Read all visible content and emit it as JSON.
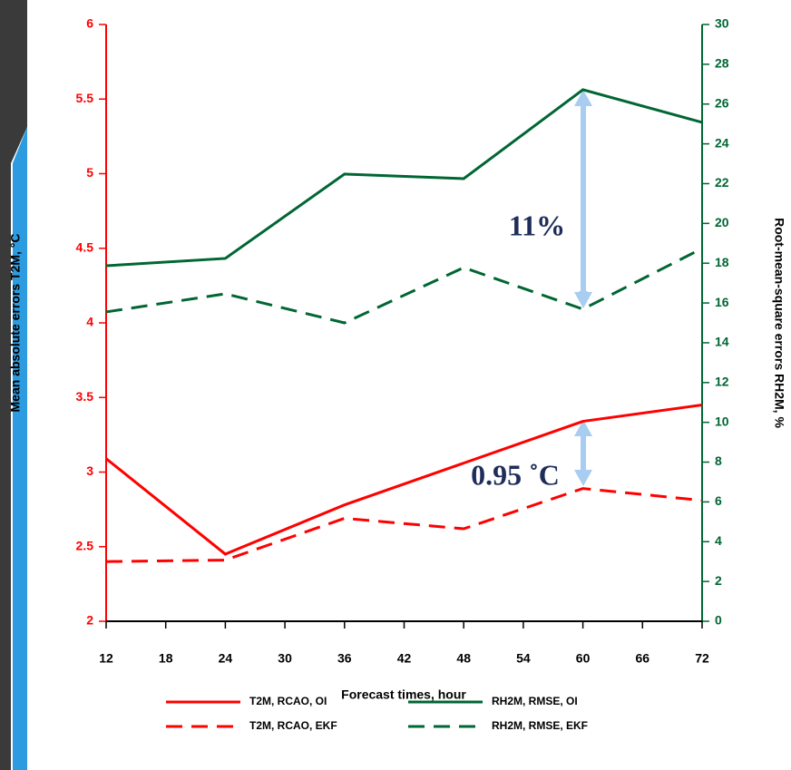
{
  "chart_data": {
    "type": "line",
    "xlabel": "Forecast times, hour",
    "ylabel": "Mean absolute errors T2M, °C",
    "y2label": "Root-mean-square errors RH2M, %",
    "x": [
      12,
      24,
      36,
      48,
      60,
      72
    ],
    "xlim": [
      12,
      72
    ],
    "xticks": [
      12,
      18,
      24,
      30,
      36,
      42,
      48,
      54,
      60,
      66,
      72
    ],
    "ylim": [
      2,
      6
    ],
    "yticks": [
      2,
      2.5,
      3,
      3.5,
      4,
      4.5,
      5,
      5.5,
      6
    ],
    "y2lim": [
      0,
      30
    ],
    "y2ticks": [
      0,
      2,
      4,
      6,
      8,
      10,
      12,
      14,
      16,
      18,
      20,
      22,
      24,
      26,
      28,
      30
    ],
    "ycolor": "#ff0000",
    "y2color": "#006633",
    "series": [
      {
        "name": "T2M, RCAO, OI",
        "color": "#ff0000",
        "dash": false,
        "values": [
          3.09,
          2.45,
          2.78,
          3.06,
          3.34,
          3.45
        ]
      },
      {
        "name": "T2M, RCAO, EKF",
        "color": "#ff0000",
        "dash": true,
        "values": [
          2.4,
          2.41,
          2.69,
          2.62,
          2.89,
          2.81
        ]
      },
      {
        "name": "RH2M, RMSE, OI",
        "color": "#006633",
        "dash": false,
        "axis": "y2",
        "values": [
          17.87,
          18.24,
          22.48,
          22.25,
          26.72,
          25.08
        ]
      },
      {
        "name": "RH2M, RMSE, EKF",
        "color": "#006633",
        "dash": true,
        "axis": "y2",
        "values": [
          15.55,
          16.46,
          15.0,
          17.78,
          15.69,
          18.74
        ]
      }
    ],
    "annotations": [
      "11%",
      "0.95 ˚C"
    ]
  }
}
